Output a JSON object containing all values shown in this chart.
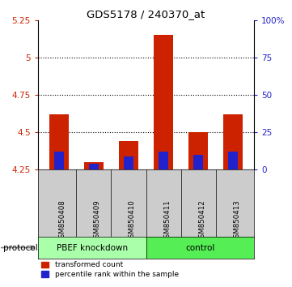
{
  "title": "GDS5178 / 240370_at",
  "samples": [
    "GSM850408",
    "GSM850409",
    "GSM850410",
    "GSM850411",
    "GSM850412",
    "GSM850413"
  ],
  "red_values": [
    4.62,
    4.3,
    4.44,
    5.15,
    4.5,
    4.62
  ],
  "blue_values": [
    4.37,
    4.285,
    4.335,
    4.37,
    4.345,
    4.37
  ],
  "baseline": 4.25,
  "ylim_left": [
    4.25,
    5.25
  ],
  "ylim_right": [
    0,
    100
  ],
  "yticks_left": [
    4.25,
    4.5,
    4.75,
    5.0,
    5.25
  ],
  "yticks_right": [
    0,
    25,
    50,
    75,
    100
  ],
  "ytick_labels_left": [
    "4.25",
    "4.5",
    "4.75",
    "5",
    "5.25"
  ],
  "ytick_labels_right": [
    "0",
    "25",
    "50",
    "75",
    "100%"
  ],
  "gridlines": [
    4.5,
    4.75,
    5.0
  ],
  "group1_label": "PBEF knockdown",
  "group2_label": "control",
  "protocol_label": "protocol",
  "legend_red": "transformed count",
  "legend_blue": "percentile rank within the sample",
  "color_red": "#CC2200",
  "color_blue": "#2222CC",
  "color_group1_bg": "#AAFFAA",
  "color_group2_bg": "#55EE55",
  "color_sample_bg": "#CCCCCC",
  "bar_width": 0.55,
  "blue_bar_width": 0.28
}
